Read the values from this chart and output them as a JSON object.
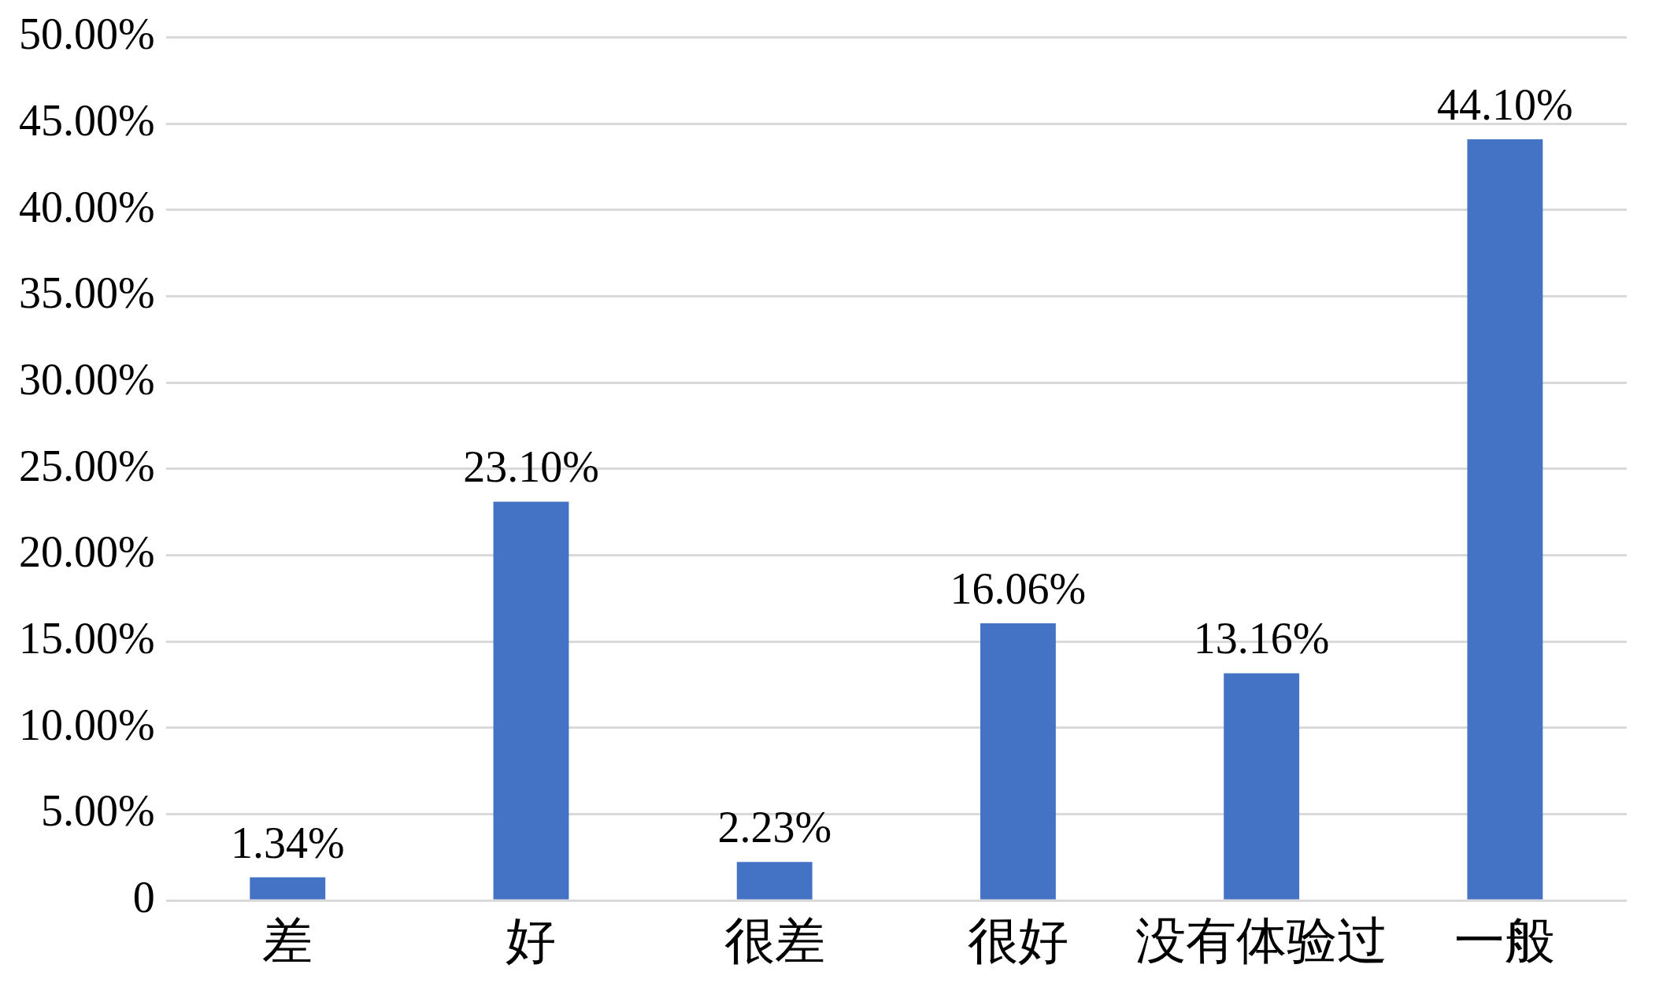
{
  "chart_data": {
    "type": "bar",
    "categories": [
      "差",
      "好",
      "很差",
      "很好",
      "没有体验过",
      "一般"
    ],
    "values": [
      1.34,
      23.1,
      2.23,
      16.06,
      13.16,
      44.1
    ],
    "value_labels": [
      "1.34%",
      "23.10%",
      "2.23%",
      "16.06%",
      "13.16%",
      "44.10%"
    ],
    "color": "#4472c4",
    "ylim": [
      0,
      50
    ],
    "yticks": [
      {
        "value": 0,
        "label": "0"
      },
      {
        "value": 5,
        "label": "5.00%"
      },
      {
        "value": 10,
        "label": "10.00%"
      },
      {
        "value": 15,
        "label": "15.00%"
      },
      {
        "value": 20,
        "label": "20.00%"
      },
      {
        "value": 25,
        "label": "25.00%"
      },
      {
        "value": 30,
        "label": "30.00%"
      },
      {
        "value": 35,
        "label": "35.00%"
      },
      {
        "value": 40,
        "label": "40.00%"
      },
      {
        "value": 45,
        "label": "45.00%"
      },
      {
        "value": 50,
        "label": "50.00%"
      }
    ],
    "grid": "y"
  }
}
